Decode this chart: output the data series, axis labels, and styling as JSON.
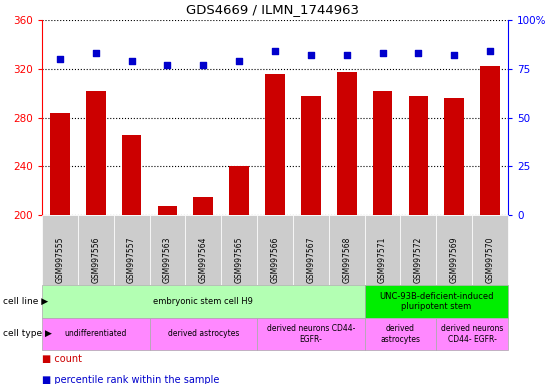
{
  "title": "GDS4669 / ILMN_1744963",
  "samples": [
    "GSM997555",
    "GSM997556",
    "GSM997557",
    "GSM997563",
    "GSM997564",
    "GSM997565",
    "GSM997566",
    "GSM997567",
    "GSM997568",
    "GSM997571",
    "GSM997572",
    "GSM997569",
    "GSM997570"
  ],
  "counts": [
    284,
    302,
    266,
    207,
    215,
    240,
    316,
    298,
    317,
    302,
    298,
    296,
    322
  ],
  "percentiles": [
    80,
    83,
    79,
    77,
    77,
    79,
    84,
    82,
    82,
    83,
    83,
    82,
    84
  ],
  "ylim_left": [
    200,
    360
  ],
  "ylim_right": [
    0,
    100
  ],
  "yticks_left": [
    200,
    240,
    280,
    320,
    360
  ],
  "yticks_right": [
    0,
    25,
    50,
    75,
    100
  ],
  "bar_color": "#cc0000",
  "dot_color": "#0000cc",
  "cell_line_groups": [
    {
      "label": "embryonic stem cell H9",
      "start": 0,
      "end": 8,
      "color": "#b3ffb3"
    },
    {
      "label": "UNC-93B-deficient-induced\npluripotent stem",
      "start": 9,
      "end": 12,
      "color": "#00ee00"
    }
  ],
  "cell_type_groups": [
    {
      "label": "undifferentiated",
      "start": 0,
      "end": 2,
      "color": "#ff88ff"
    },
    {
      "label": "derived astrocytes",
      "start": 3,
      "end": 5,
      "color": "#ff88ff"
    },
    {
      "label": "derived neurons CD44-\nEGFR-",
      "start": 6,
      "end": 8,
      "color": "#ff88ff"
    },
    {
      "label": "derived\nastrocytes",
      "start": 9,
      "end": 10,
      "color": "#ff88ff"
    },
    {
      "label": "derived neurons\nCD44- EGFR-",
      "start": 11,
      "end": 12,
      "color": "#ff88ff"
    }
  ]
}
